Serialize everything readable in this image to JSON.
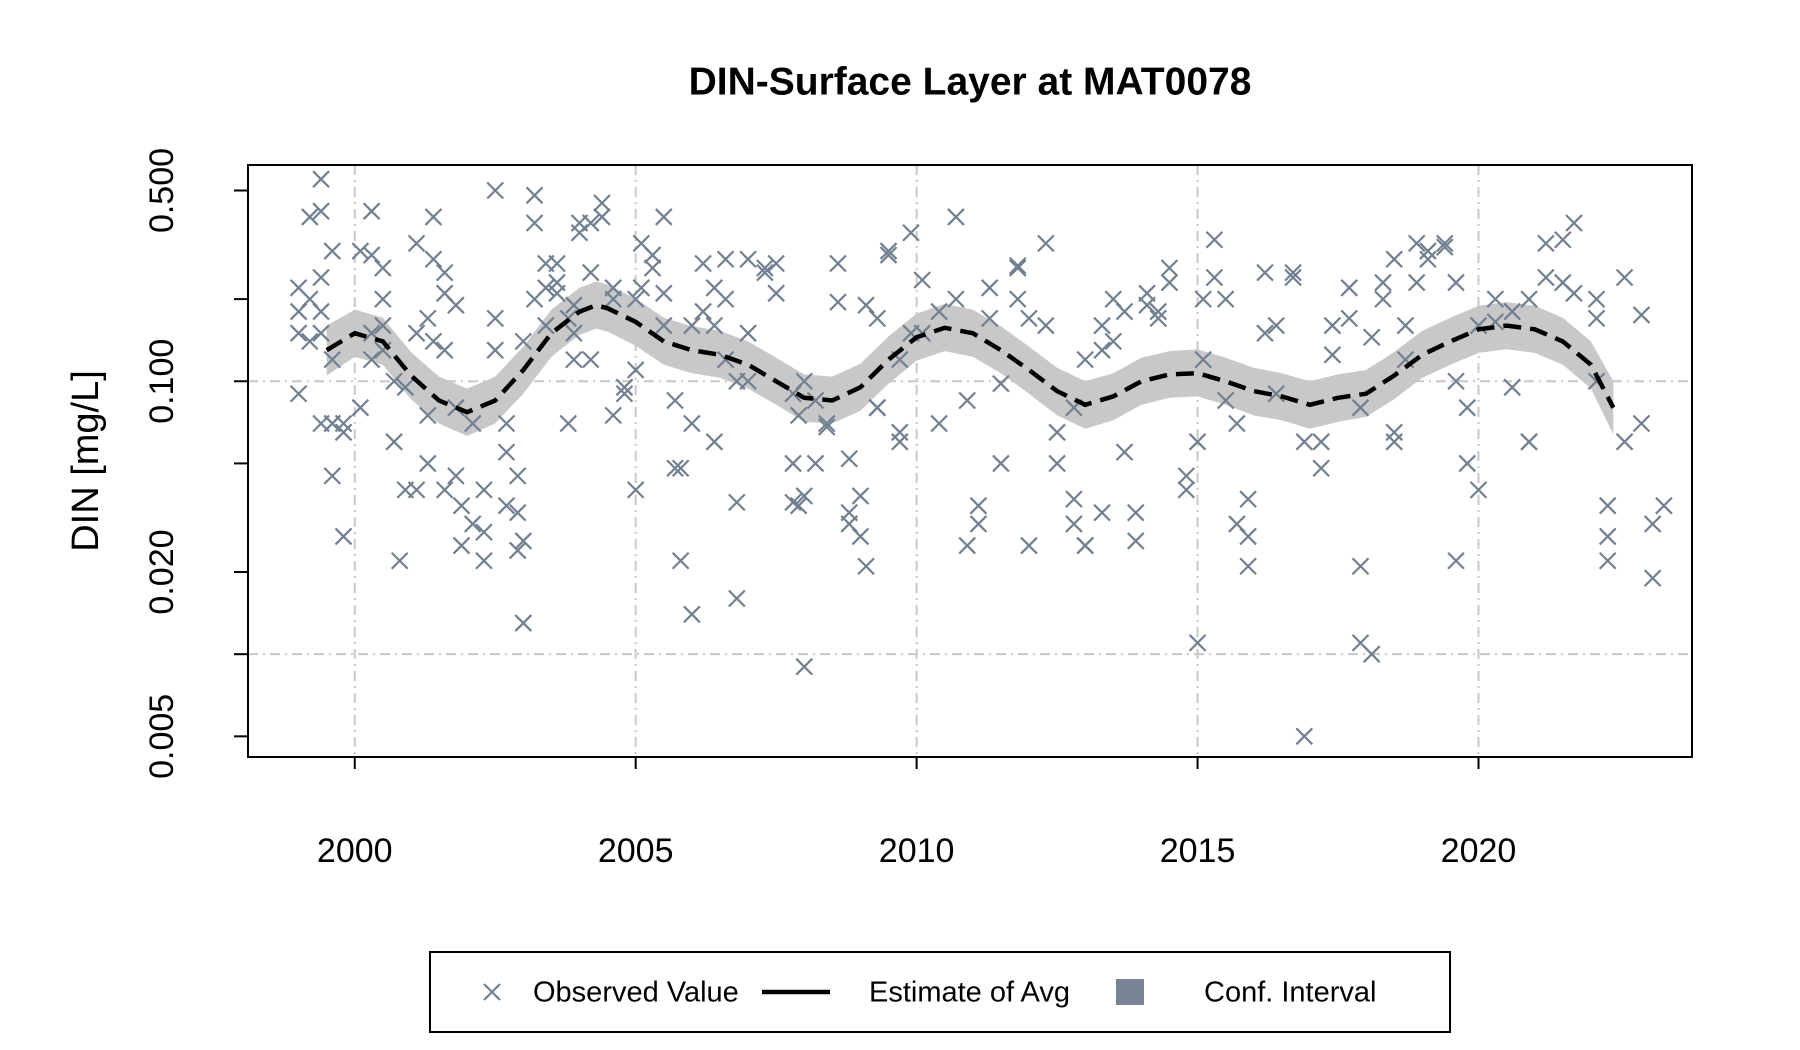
{
  "chart_data": {
    "type": "scatter",
    "title": "DIN-Surface Layer at MAT0078",
    "ylabel": "DIN [mg/L]",
    "log_y": true,
    "xlim": [
      1998.1,
      2023.8
    ],
    "ylim": [
      0.0042,
      0.62
    ],
    "xticks": [
      2000,
      2005,
      2010,
      2015,
      2020
    ],
    "yticks": [
      {
        "value": 0.5,
        "label": "0.500"
      },
      {
        "value": 0.1,
        "label": "0.100"
      },
      {
        "value": 0.02,
        "label": "0.020"
      },
      {
        "value": 0.005,
        "label": "0.005"
      }
    ],
    "y_minor_ticks": [
      0.2,
      0.05,
      0.01
    ],
    "ygrid": [
      0.1,
      0.01
    ],
    "xgrid": true,
    "legend_position": "bottom",
    "series": [
      {
        "name": "Observed Value",
        "kind": "points",
        "color": "#708090",
        "x": [
          1999.0,
          1999.0,
          1999.0,
          1999.0,
          1999.2,
          1999.2,
          1999.2,
          1999.4,
          1999.4,
          1999.4,
          1999.4,
          1999.4,
          1999.4,
          1999.6,
          1999.6,
          1999.6,
          1999.6,
          1999.6,
          1999.8,
          1999.8,
          1999.8,
          2000.1,
          2000.1,
          2000.3,
          2000.3,
          2000.3,
          2000.3,
          2000.5,
          2000.5,
          2000.5,
          2000.5,
          2000.7,
          2000.7,
          2000.8,
          2000.9,
          2000.9,
          2001.1,
          2001.1,
          2001.1,
          2001.3,
          2001.3,
          2001.3,
          2001.4,
          2001.4,
          2001.4,
          2001.6,
          2001.6,
          2001.6,
          2001.6,
          2001.8,
          2001.8,
          2001.8,
          2001.9,
          2001.9,
          2002.1,
          2002.1,
          2002.3,
          2002.3,
          2002.3,
          2002.5,
          2002.5,
          2002.5,
          2002.7,
          2002.7,
          2002.7,
          2002.9,
          2002.9,
          2002.9,
          2003.0,
          2003.0,
          2003.0,
          2003.2,
          2003.2,
          2003.2,
          2003.4,
          2003.4,
          2003.4,
          2003.6,
          2003.6,
          2003.6,
          2003.8,
          2003.8,
          2003.9,
          2003.9,
          2003.9,
          2004.0,
          2004.0,
          2004.2,
          2004.2,
          2004.2,
          2004.4,
          2004.4,
          2004.6,
          2004.6,
          2004.6,
          2004.8,
          2004.8,
          2005.0,
          2005.0,
          2005.0,
          2005.1,
          2005.1,
          2005.3,
          2005.3,
          2005.5,
          2005.5,
          2005.5,
          2005.7,
          2005.7,
          2005.8,
          2005.8,
          2006.0,
          2006.0,
          2006.0,
          2006.2,
          2006.2,
          2006.4,
          2006.4,
          2006.4,
          2006.6,
          2006.6,
          2006.6,
          2006.8,
          2006.8,
          2006.8,
          2007.0,
          2007.0,
          2007.0,
          2007.3,
          2007.3,
          2007.5,
          2007.5,
          2007.8,
          2007.8,
          2007.8,
          2007.9,
          2007.9,
          2008.0,
          2008.0,
          2008.0,
          2008.2,
          2008.2,
          2008.4,
          2008.4,
          2008.6,
          2008.6,
          2008.8,
          2008.8,
          2008.8,
          2009.0,
          2009.0,
          2009.1,
          2009.1,
          2009.3,
          2009.3,
          2009.3,
          2009.5,
          2009.5,
          2009.7,
          2009.7,
          2009.7,
          2009.9,
          2009.9,
          2010.1,
          2010.1,
          2010.4,
          2010.4,
          2010.7,
          2010.7,
          2010.9,
          2010.9,
          2011.1,
          2011.1,
          2011.3,
          2011.3,
          2011.5,
          2011.5,
          2011.8,
          2011.8,
          2011.8,
          2012.0,
          2012.0,
          2012.3,
          2012.3,
          2012.5,
          2012.5,
          2012.8,
          2012.8,
          2012.8,
          2013.0,
          2013.0,
          2013.0,
          2013.3,
          2013.3,
          2013.3,
          2013.5,
          2013.5,
          2013.7,
          2013.7,
          2013.9,
          2013.9,
          2014.1,
          2014.1,
          2014.3,
          2014.3,
          2014.5,
          2014.5,
          2014.8,
          2014.8,
          2015.0,
          2015.0,
          2015.1,
          2015.1,
          2015.3,
          2015.3,
          2015.5,
          2015.5,
          2015.7,
          2015.7,
          2015.9,
          2015.9,
          2015.9,
          2016.2,
          2016.2,
          2016.4,
          2016.4,
          2016.7,
          2016.7,
          2016.9,
          2016.9,
          2017.2,
          2017.2,
          2017.4,
          2017.4,
          2017.7,
          2017.7,
          2017.9,
          2017.9,
          2017.9,
          2018.1,
          2018.1,
          2018.3,
          2018.3,
          2018.5,
          2018.5,
          2018.5,
          2018.7,
          2018.7,
          2018.9,
          2018.9,
          2019.1,
          2019.1,
          2019.4,
          2019.4,
          2019.6,
          2019.6,
          2019.6,
          2019.8,
          2019.8,
          2020.0,
          2020.0,
          2020.3,
          2020.3,
          2020.6,
          2020.6,
          2020.9,
          2020.9,
          2020.9,
          2021.2,
          2021.2,
          2021.5,
          2021.5,
          2021.7,
          2021.7,
          2022.1,
          2022.1,
          2022.1,
          2022.3,
          2022.3,
          2022.3,
          2022.6,
          2022.6,
          2022.9,
          2022.9,
          2023.1,
          2023.1,
          2023.3
        ],
        "values": [
          0.22,
          0.15,
          0.18,
          0.09,
          0.14,
          0.2,
          0.4,
          0.55,
          0.42,
          0.24,
          0.18,
          0.07,
          0.15,
          0.3,
          0.07,
          0.045,
          0.12,
          0.07,
          0.07,
          0.027,
          0.065,
          0.3,
          0.08,
          0.42,
          0.29,
          0.15,
          0.12,
          0.26,
          0.2,
          0.16,
          0.13,
          0.1,
          0.06,
          0.022,
          0.04,
          0.095,
          0.32,
          0.15,
          0.04,
          0.17,
          0.05,
          0.075,
          0.4,
          0.28,
          0.14,
          0.25,
          0.21,
          0.04,
          0.13,
          0.19,
          0.08,
          0.045,
          0.035,
          0.025,
          0.03,
          0.07,
          0.022,
          0.028,
          0.04,
          0.13,
          0.5,
          0.17,
          0.055,
          0.035,
          0.07,
          0.045,
          0.024,
          0.033,
          0.026,
          0.013,
          0.14,
          0.38,
          0.48,
          0.2,
          0.27,
          0.16,
          0.22,
          0.27,
          0.23,
          0.21,
          0.07,
          0.17,
          0.19,
          0.12,
          0.15,
          0.38,
          0.35,
          0.38,
          0.25,
          0.12,
          0.45,
          0.4,
          0.22,
          0.2,
          0.075,
          0.09,
          0.095,
          0.04,
          0.11,
          0.2,
          0.32,
          0.22,
          0.29,
          0.26,
          0.4,
          0.21,
          0.16,
          0.085,
          0.048,
          0.022,
          0.048,
          0.07,
          0.014,
          0.16,
          0.27,
          0.18,
          0.22,
          0.16,
          0.06,
          0.28,
          0.2,
          0.12,
          0.036,
          0.016,
          0.1,
          0.28,
          0.15,
          0.1,
          0.26,
          0.25,
          0.27,
          0.21,
          0.05,
          0.036,
          0.09,
          0.035,
          0.075,
          0.009,
          0.038,
          0.1,
          0.05,
          0.085,
          0.068,
          0.07,
          0.27,
          0.195,
          0.052,
          0.03,
          0.033,
          0.027,
          0.038,
          0.021,
          0.19,
          0.17,
          0.08,
          0.08,
          0.3,
          0.29,
          0.06,
          0.065,
          0.12,
          0.35,
          0.15,
          0.235,
          0.15,
          0.18,
          0.07,
          0.4,
          0.2,
          0.085,
          0.025,
          0.035,
          0.03,
          0.22,
          0.17,
          0.098,
          0.05,
          0.265,
          0.26,
          0.2,
          0.025,
          0.17,
          0.16,
          0.32,
          0.065,
          0.05,
          0.037,
          0.03,
          0.08,
          0.025,
          0.025,
          0.12,
          0.16,
          0.13,
          0.033,
          0.2,
          0.14,
          0.055,
          0.18,
          0.026,
          0.033,
          0.21,
          0.19,
          0.18,
          0.17,
          0.23,
          0.26,
          0.045,
          0.04,
          0.011,
          0.06,
          0.2,
          0.12,
          0.33,
          0.24,
          0.2,
          0.085,
          0.03,
          0.07,
          0.021,
          0.037,
          0.027,
          0.25,
          0.15,
          0.16,
          0.09,
          0.24,
          0.25,
          0.005,
          0.06,
          0.048,
          0.06,
          0.16,
          0.125,
          0.22,
          0.17,
          0.021,
          0.011,
          0.08,
          0.01,
          0.145,
          0.23,
          0.2,
          0.28,
          0.065,
          0.06,
          0.16,
          0.12,
          0.23,
          0.32,
          0.28,
          0.3,
          0.31,
          0.32,
          0.23,
          0.022,
          0.1,
          0.05,
          0.08,
          0.04,
          0.16,
          0.2,
          0.165,
          0.18,
          0.095,
          0.06,
          0.06,
          0.2,
          0.32,
          0.24,
          0.33,
          0.23,
          0.38,
          0.21,
          0.1,
          0.17,
          0.2,
          0.035,
          0.022,
          0.027,
          0.24,
          0.06,
          0.175,
          0.07,
          0.03,
          0.019,
          0.035
        ]
      },
      {
        "name": "Estimate of Avg",
        "kind": "line",
        "color": "#000000",
        "x": [
          1999.5,
          2000.0,
          2000.5,
          2001.0,
          2001.5,
          2002.0,
          2002.5,
          2003.0,
          2003.5,
          2004.0,
          2004.3,
          2004.5,
          2005.0,
          2005.5,
          2006.0,
          2006.5,
          2007.0,
          2007.5,
          2008.0,
          2008.5,
          2009.0,
          2009.5,
          2010.0,
          2010.5,
          2011.0,
          2011.5,
          2012.0,
          2012.5,
          2013.0,
          2013.5,
          2014.0,
          2014.5,
          2015.0,
          2015.5,
          2016.0,
          2016.5,
          2017.0,
          2017.5,
          2018.0,
          2018.5,
          2019.0,
          2019.5,
          2020.0,
          2020.5,
          2021.0,
          2021.5,
          2022.0,
          2022.4
        ],
        "values": [
          0.13,
          0.15,
          0.14,
          0.105,
          0.085,
          0.077,
          0.085,
          0.11,
          0.15,
          0.18,
          0.19,
          0.185,
          0.165,
          0.14,
          0.13,
          0.125,
          0.115,
          0.1,
          0.087,
          0.085,
          0.095,
          0.12,
          0.145,
          0.157,
          0.15,
          0.13,
          0.11,
          0.092,
          0.082,
          0.088,
          0.1,
          0.106,
          0.107,
          0.1,
          0.092,
          0.088,
          0.082,
          0.087,
          0.09,
          0.105,
          0.125,
          0.14,
          0.155,
          0.16,
          0.155,
          0.14,
          0.115,
          0.08
        ]
      },
      {
        "name": "Conf. Interval",
        "kind": "band",
        "color": "#c8c8c8",
        "legend_color": "#768494",
        "x": [
          1999.5,
          2000.0,
          2000.5,
          2001.0,
          2001.5,
          2002.0,
          2002.5,
          2003.0,
          2003.5,
          2004.0,
          2004.3,
          2004.5,
          2005.0,
          2005.5,
          2006.0,
          2006.5,
          2007.0,
          2007.5,
          2008.0,
          2008.5,
          2009.0,
          2009.5,
          2010.0,
          2010.5,
          2011.0,
          2011.5,
          2012.0,
          2012.5,
          2013.0,
          2013.5,
          2014.0,
          2014.5,
          2015.0,
          2015.5,
          2016.0,
          2016.5,
          2017.0,
          2017.5,
          2018.0,
          2018.5,
          2019.0,
          2019.5,
          2020.0,
          2020.5,
          2021.0,
          2021.5,
          2022.0,
          2022.4
        ],
        "lower": [
          0.105,
          0.123,
          0.115,
          0.086,
          0.07,
          0.063,
          0.07,
          0.09,
          0.123,
          0.148,
          0.156,
          0.152,
          0.135,
          0.115,
          0.107,
          0.103,
          0.094,
          0.082,
          0.071,
          0.07,
          0.078,
          0.098,
          0.119,
          0.129,
          0.123,
          0.107,
          0.09,
          0.075,
          0.067,
          0.072,
          0.082,
          0.087,
          0.088,
          0.082,
          0.075,
          0.072,
          0.067,
          0.071,
          0.074,
          0.086,
          0.103,
          0.115,
          0.127,
          0.131,
          0.127,
          0.115,
          0.094,
          0.064
        ],
        "upper": [
          0.16,
          0.183,
          0.171,
          0.128,
          0.104,
          0.094,
          0.104,
          0.134,
          0.183,
          0.22,
          0.232,
          0.226,
          0.201,
          0.171,
          0.159,
          0.153,
          0.14,
          0.122,
          0.106,
          0.104,
          0.116,
          0.146,
          0.177,
          0.192,
          0.183,
          0.159,
          0.134,
          0.112,
          0.1,
          0.107,
          0.122,
          0.129,
          0.131,
          0.122,
          0.112,
          0.107,
          0.1,
          0.106,
          0.11,
          0.128,
          0.153,
          0.171,
          0.189,
          0.195,
          0.189,
          0.171,
          0.14,
          0.1
        ]
      }
    ]
  }
}
